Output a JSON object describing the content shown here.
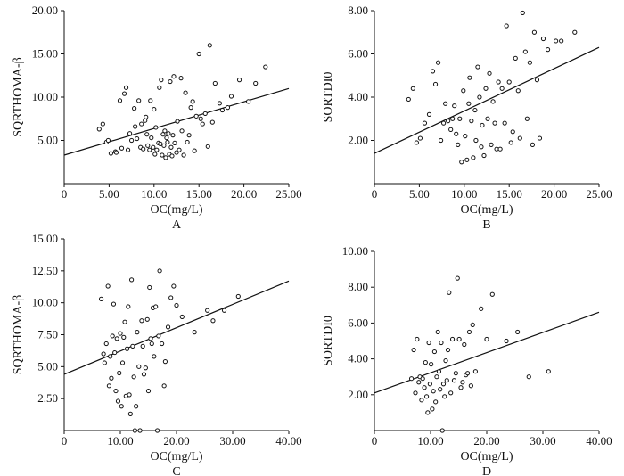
{
  "figure_colors": {
    "ink": "#111111",
    "background": "#ffffff"
  },
  "chart_data": [
    {
      "panel": "A",
      "type": "scatter",
      "xlabel": "OC(mg/L)",
      "ylabel": "SQRTHOMA-β",
      "xlim": [
        0,
        25
      ],
      "ylim": [
        0,
        20
      ],
      "xticks": [
        0,
        5,
        10,
        15,
        20,
        25
      ],
      "xtick_labels": [
        "0",
        "5.00",
        "10.00",
        "15.00",
        "20.00",
        "25.00"
      ],
      "yticks": [
        5,
        10,
        15,
        20
      ],
      "ytick_labels": [
        "5.00",
        "10.00",
        "15.00",
        "20.00"
      ],
      "regression": {
        "x0": 0,
        "y0": 3.3,
        "x1": 25,
        "y1": 11.0
      },
      "x": [
        3.9,
        4.3,
        4.7,
        4.9,
        5.2,
        5.7,
        5.8,
        6.2,
        6.4,
        6.7,
        6.9,
        7.1,
        7.3,
        7.5,
        7.8,
        7.9,
        8.1,
        8.3,
        8.5,
        8.6,
        8.8,
        9.0,
        9.1,
        9.2,
        9.3,
        9.5,
        9.6,
        9.7,
        9.9,
        10.0,
        10.1,
        10.2,
        10.3,
        10.5,
        10.6,
        10.7,
        10.8,
        10.9,
        11.0,
        11.1,
        11.2,
        11.3,
        11.4,
        11.5,
        11.6,
        11.7,
        11.8,
        11.9,
        12.0,
        12.1,
        12.2,
        12.3,
        12.5,
        12.6,
        12.8,
        13.0,
        13.1,
        13.3,
        13.5,
        13.7,
        13.9,
        14.1,
        14.3,
        14.5,
        14.7,
        15.0,
        15.2,
        15.4,
        15.7,
        16.0,
        16.2,
        16.5,
        16.8,
        17.3,
        17.6,
        18.2,
        18.6,
        19.5,
        20.5,
        21.3,
        22.4
      ],
      "y": [
        6.3,
        6.9,
        4.8,
        5.0,
        3.5,
        3.7,
        3.6,
        9.6,
        4.1,
        10.4,
        11.1,
        3.9,
        5.8,
        5.0,
        8.7,
        6.6,
        5.2,
        9.6,
        4.2,
        6.9,
        4.0,
        7.3,
        7.7,
        5.7,
        4.4,
        3.9,
        9.6,
        5.3,
        4.2,
        8.6,
        3.4,
        6.5,
        3.9,
        4.7,
        11.1,
        4.6,
        12.0,
        3.3,
        5.7,
        4.4,
        6.1,
        3.0,
        5.3,
        4.8,
        5.8,
        3.4,
        11.8,
        4.2,
        3.2,
        5.6,
        12.4,
        4.7,
        3.6,
        7.2,
        3.9,
        12.2,
        6.1,
        3.3,
        10.5,
        4.8,
        5.6,
        8.8,
        9.5,
        3.8,
        7.8,
        15.0,
        7.5,
        6.9,
        8.1,
        4.3,
        16.0,
        7.1,
        11.6,
        9.3,
        8.5,
        8.8,
        10.1,
        12.0,
        9.5,
        11.6,
        13.5
      ]
    },
    {
      "panel": "B",
      "type": "scatter",
      "xlabel": "OC(mg/L)",
      "ylabel": "SORTDI0",
      "xlim": [
        0,
        25
      ],
      "ylim": [
        0,
        8
      ],
      "xticks": [
        0,
        5,
        10,
        15,
        20,
        25
      ],
      "xtick_labels": [
        "0",
        "5.00",
        "10.00",
        "15.00",
        "20.00",
        "25.00"
      ],
      "yticks": [
        2,
        4,
        6,
        8
      ],
      "ytick_labels": [
        "2.00",
        "4.00",
        "6.00",
        "8.00"
      ],
      "regression": {
        "x0": 0,
        "y0": 1.4,
        "x1": 25,
        "y1": 6.3
      },
      "x": [
        3.8,
        4.3,
        4.7,
        5.1,
        5.6,
        6.1,
        6.5,
        6.8,
        7.1,
        7.4,
        7.7,
        7.9,
        8.2,
        8.5,
        8.7,
        8.9,
        9.1,
        9.3,
        9.5,
        9.7,
        9.9,
        10.1,
        10.3,
        10.5,
        10.6,
        10.8,
        11.0,
        11.2,
        11.3,
        11.5,
        11.7,
        11.9,
        12.0,
        12.2,
        12.4,
        12.6,
        12.8,
        13.0,
        13.2,
        13.4,
        13.6,
        13.8,
        14.0,
        14.2,
        14.5,
        14.7,
        15.0,
        15.2,
        15.4,
        15.7,
        16.0,
        16.2,
        16.5,
        16.8,
        17.0,
        17.3,
        17.6,
        17.8,
        18.1,
        18.4,
        18.8,
        19.3,
        20.2,
        20.8,
        22.3
      ],
      "y": [
        3.9,
        4.4,
        1.9,
        2.1,
        2.8,
        3.2,
        5.2,
        4.6,
        5.6,
        2.0,
        2.8,
        3.7,
        2.9,
        2.5,
        3.0,
        3.6,
        2.3,
        1.8,
        3.0,
        1.0,
        4.3,
        2.2,
        1.1,
        3.7,
        4.9,
        2.9,
        1.2,
        3.4,
        2.0,
        5.4,
        4.0,
        1.7,
        2.7,
        1.3,
        4.4,
        3.0,
        5.1,
        1.8,
        3.8,
        2.8,
        1.6,
        4.7,
        1.6,
        4.4,
        2.8,
        7.3,
        4.7,
        1.9,
        2.4,
        5.8,
        4.3,
        2.1,
        7.9,
        6.1,
        3.0,
        5.6,
        1.8,
        7.0,
        4.8,
        2.1,
        6.7,
        6.2,
        6.6,
        6.6,
        7.0
      ]
    },
    {
      "panel": "C",
      "type": "scatter",
      "xlabel": "OC(mg/L)",
      "ylabel": "SQRTHOMA-β",
      "xlim": [
        0,
        40
      ],
      "ylim": [
        0,
        15
      ],
      "xticks": [
        0,
        10,
        20,
        30,
        40
      ],
      "xtick_labels": [
        "0",
        "10.00",
        "20.00",
        "30.00",
        "40.00"
      ],
      "yticks": [
        2.5,
        5,
        7.5,
        10,
        12.5,
        15
      ],
      "ytick_labels": [
        "2.50",
        "5.00",
        "7.50",
        "10.00",
        "12.50",
        "15.00"
      ],
      "regression": {
        "x0": 0,
        "y0": 4.4,
        "x1": 40,
        "y1": 11.7
      },
      "x": [
        6.6,
        7.0,
        7.2,
        7.5,
        7.8,
        8.0,
        8.2,
        8.4,
        8.6,
        8.8,
        9.0,
        9.2,
        9.4,
        9.6,
        9.8,
        10.0,
        10.2,
        10.4,
        10.6,
        10.8,
        11.0,
        11.2,
        11.4,
        11.6,
        11.8,
        12.0,
        12.2,
        12.4,
        12.6,
        12.8,
        13.0,
        13.3,
        13.5,
        13.8,
        14.0,
        14.2,
        14.5,
        14.8,
        15.0,
        15.2,
        15.4,
        15.6,
        15.8,
        16.0,
        16.3,
        16.6,
        16.8,
        17.0,
        17.4,
        17.8,
        18.0,
        18.5,
        19.0,
        19.5,
        20.0,
        21.0,
        23.2,
        25.5,
        26.5,
        28.5,
        31.0
      ],
      "y": [
        10.3,
        6.0,
        5.3,
        6.8,
        11.3,
        3.5,
        5.8,
        4.1,
        7.4,
        9.9,
        6.1,
        3.1,
        7.2,
        2.3,
        4.5,
        7.6,
        1.9,
        5.3,
        7.3,
        8.5,
        2.7,
        6.4,
        9.7,
        2.8,
        1.3,
        11.8,
        6.6,
        4.2,
        0.0,
        1.9,
        7.7,
        5.0,
        0.0,
        8.6,
        6.6,
        4.4,
        4.9,
        8.7,
        3.1,
        11.2,
        7.2,
        6.8,
        9.6,
        5.8,
        9.7,
        0.0,
        7.4,
        12.5,
        6.8,
        3.5,
        5.4,
        8.1,
        10.4,
        11.3,
        9.8,
        8.9,
        7.7,
        9.4,
        8.6,
        9.4,
        10.5
      ]
    },
    {
      "panel": "D",
      "type": "scatter",
      "xlabel": "OC(mg/L)",
      "ylabel": "SORTDI0",
      "xlim": [
        0,
        40
      ],
      "ylim": [
        0,
        10
      ],
      "xticks": [
        0,
        10,
        20,
        30,
        40
      ],
      "xtick_labels": [
        "0",
        "10.00",
        "20.00",
        "30.00",
        "40.00"
      ],
      "yticks": [
        2,
        4,
        6,
        8,
        10
      ],
      "ytick_labels": [
        "2.00",
        "4.00",
        "6.00",
        "8.00",
        "10.00"
      ],
      "regression": {
        "x0": 0,
        "y0": 2.1,
        "x1": 40,
        "y1": 6.6
      },
      "x": [
        6.6,
        7.0,
        7.3,
        7.6,
        7.9,
        8.1,
        8.4,
        8.6,
        8.9,
        9.1,
        9.3,
        9.5,
        9.7,
        9.9,
        10.1,
        10.3,
        10.5,
        10.7,
        10.9,
        11.1,
        11.3,
        11.5,
        11.7,
        11.9,
        12.1,
        12.3,
        12.5,
        12.7,
        12.9,
        13.1,
        13.3,
        13.6,
        13.9,
        14.2,
        14.5,
        14.8,
        15.1,
        15.4,
        15.7,
        16.0,
        16.3,
        16.6,
        16.9,
        17.2,
        17.5,
        18.0,
        19.0,
        20.0,
        21.0,
        23.5,
        25.5,
        27.5,
        31.0
      ],
      "y": [
        2.9,
        4.5,
        2.1,
        5.1,
        2.7,
        3.0,
        1.7,
        2.9,
        2.4,
        3.8,
        1.9,
        1.0,
        4.9,
        2.6,
        3.7,
        1.2,
        2.2,
        4.4,
        1.6,
        3.0,
        5.5,
        3.3,
        2.3,
        4.9,
        0.0,
        2.6,
        1.9,
        3.9,
        2.8,
        4.5,
        7.7,
        2.1,
        5.1,
        2.8,
        3.2,
        8.5,
        5.1,
        2.4,
        2.7,
        4.8,
        3.1,
        3.2,
        5.5,
        2.5,
        5.9,
        3.3,
        6.8,
        5.1,
        7.6,
        5.0,
        5.5,
        3.0,
        3.3
      ]
    }
  ],
  "panel_labels": [
    "A",
    "B",
    "C",
    "D"
  ]
}
